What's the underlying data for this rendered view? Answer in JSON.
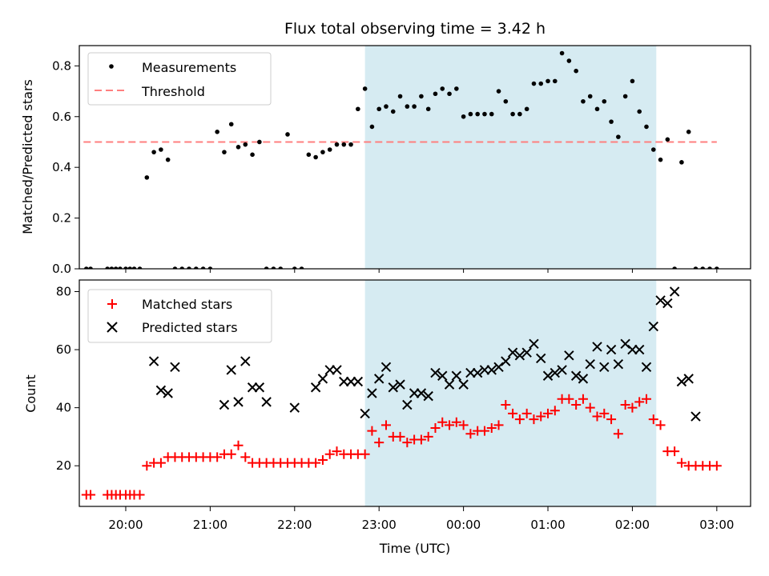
{
  "chart_data": [
    {
      "type": "scatter",
      "title": "Flux total observing time = 3.42 h",
      "ylabel": "Matched/Predicted stars",
      "ylim": [
        0,
        0.88
      ],
      "yticks": [
        0.0,
        0.2,
        0.4,
        0.6,
        0.8
      ],
      "ytick_labels": [
        "0.0",
        "0.2",
        "0.4",
        "0.6",
        "0.8"
      ],
      "x_hours_range": [
        19.45,
        27.4
      ],
      "legend_placement": "upper-left",
      "shaded_interval": {
        "start": "22:50",
        "end": "02:17",
        "color": "#add8e6"
      },
      "threshold": {
        "name": "Threshold",
        "value": 0.5,
        "x_start": "19:30",
        "x_end": "03:00",
        "color": "#ff7f7f",
        "style": "dashed"
      },
      "series": [
        {
          "name": "Measurements",
          "marker": "dot",
          "color": "#000000",
          "x": [
            "19:32",
            "19:35",
            "19:47",
            "19:50",
            "19:53",
            "19:56",
            "20:00",
            "20:03",
            "20:06",
            "20:10",
            "20:15",
            "20:20",
            "20:25",
            "20:30",
            "20:35",
            "20:40",
            "20:45",
            "20:50",
            "20:55",
            "21:00",
            "21:05",
            "21:10",
            "21:15",
            "21:20",
            "21:25",
            "21:30",
            "21:35",
            "21:40",
            "21:45",
            "21:50",
            "21:55",
            "22:00",
            "22:05",
            "22:10",
            "22:15",
            "22:20",
            "22:25",
            "22:30",
            "22:35",
            "22:40",
            "22:45",
            "22:50",
            "22:55",
            "23:00",
            "23:05",
            "23:10",
            "23:15",
            "23:20",
            "23:25",
            "23:30",
            "23:35",
            "23:40",
            "23:45",
            "23:50",
            "23:55",
            "00:00",
            "00:05",
            "00:10",
            "00:15",
            "00:20",
            "00:25",
            "00:30",
            "00:35",
            "00:40",
            "00:45",
            "00:50",
            "00:55",
            "01:00",
            "01:05",
            "01:10",
            "01:15",
            "01:20",
            "01:25",
            "01:30",
            "01:35",
            "01:40",
            "01:45",
            "01:50",
            "01:55",
            "02:00",
            "02:05",
            "02:10",
            "02:15",
            "02:20",
            "02:25",
            "02:30",
            "02:35",
            "02:40",
            "02:45",
            "02:50",
            "02:55",
            "03:00"
          ],
          "y": [
            0,
            0,
            0,
            0,
            0,
            0,
            0,
            0,
            0,
            0,
            0.36,
            0.46,
            0.47,
            0.43,
            0,
            0,
            0,
            0,
            0,
            0,
            0.54,
            0.46,
            0.57,
            0.48,
            0.49,
            0.45,
            0.5,
            0,
            0,
            0,
            0.53,
            0,
            0,
            0.45,
            0.44,
            0.46,
            0.47,
            0.49,
            0.49,
            0.49,
            0.63,
            0.71,
            0.56,
            0.63,
            0.64,
            0.62,
            0.68,
            0.64,
            0.64,
            0.68,
            0.63,
            0.69,
            0.71,
            0.69,
            0.71,
            0.6,
            0.61,
            0.61,
            0.61,
            0.61,
            0.7,
            0.66,
            0.61,
            0.61,
            0.63,
            0.73,
            0.73,
            0.74,
            0.74,
            0.85,
            0.82,
            0.78,
            0.66,
            0.68,
            0.63,
            0.66,
            0.58,
            0.52,
            0.68,
            0.74,
            0.62,
            0.56,
            0.47,
            0.43,
            0.51,
            0,
            0.42,
            0.54,
            0,
            0,
            0,
            0
          ]
        }
      ]
    },
    {
      "type": "scatter",
      "xlabel": "Time (UTC)",
      "ylabel": "Count",
      "ylim": [
        6,
        84
      ],
      "yticks": [
        20,
        40,
        60,
        80
      ],
      "ytick_labels": [
        "20",
        "40",
        "60",
        "80"
      ],
      "x_hours_range": [
        19.45,
        27.4
      ],
      "xticks_hours": [
        20,
        21,
        22,
        23,
        24,
        25,
        26,
        27
      ],
      "xtick_labels": [
        "20:00",
        "21:00",
        "22:00",
        "23:00",
        "00:00",
        "01:00",
        "02:00",
        "03:00"
      ],
      "legend_placement": "upper-left",
      "shaded_interval": {
        "start": "22:50",
        "end": "02:17",
        "color": "#add8e6"
      },
      "series": [
        {
          "name": "Matched stars",
          "marker": "plus",
          "color": "#ff0000",
          "x": [
            "19:32",
            "19:35",
            "19:47",
            "19:50",
            "19:53",
            "19:56",
            "20:00",
            "20:03",
            "20:06",
            "20:10",
            "20:15",
            "20:20",
            "20:25",
            "20:30",
            "20:35",
            "20:40",
            "20:45",
            "20:50",
            "20:55",
            "21:00",
            "21:05",
            "21:10",
            "21:15",
            "21:20",
            "21:25",
            "21:30",
            "21:35",
            "21:40",
            "21:45",
            "21:50",
            "21:55",
            "22:00",
            "22:05",
            "22:10",
            "22:15",
            "22:20",
            "22:25",
            "22:30",
            "22:35",
            "22:40",
            "22:45",
            "22:50",
            "22:55",
            "23:00",
            "23:05",
            "23:10",
            "23:15",
            "23:20",
            "23:25",
            "23:30",
            "23:35",
            "23:40",
            "23:45",
            "23:50",
            "23:55",
            "00:00",
            "00:05",
            "00:10",
            "00:15",
            "00:20",
            "00:25",
            "00:30",
            "00:35",
            "00:40",
            "00:45",
            "00:50",
            "00:55",
            "01:00",
            "01:05",
            "01:10",
            "01:15",
            "01:20",
            "01:25",
            "01:30",
            "01:35",
            "01:40",
            "01:45",
            "01:50",
            "01:55",
            "02:00",
            "02:05",
            "02:10",
            "02:15",
            "02:20",
            "02:25",
            "02:30",
            "02:35",
            "02:40",
            "02:45",
            "02:50",
            "02:55",
            "03:00"
          ],
          "y": [
            10,
            10,
            10,
            10,
            10,
            10,
            10,
            10,
            10,
            10,
            20,
            21,
            21,
            23,
            23,
            23,
            23,
            23,
            23,
            23,
            23,
            24,
            24,
            27,
            23,
            21,
            21,
            21,
            21,
            21,
            21,
            21,
            21,
            21,
            21,
            22,
            24,
            25,
            24,
            24,
            24,
            24,
            32,
            28,
            34,
            30,
            30,
            28,
            29,
            29,
            30,
            33,
            35,
            34,
            35,
            34,
            31,
            32,
            32,
            33,
            34,
            41,
            38,
            36,
            38,
            36,
            37,
            38,
            39,
            43,
            43,
            41,
            43,
            40,
            37,
            38,
            36,
            31,
            41,
            40,
            42,
            43,
            36,
            34,
            25,
            25,
            21,
            20,
            20,
            20,
            20,
            20
          ]
        },
        {
          "name": "Predicted stars",
          "marker": "x",
          "color": "#000000",
          "x": [
            "20:20",
            "20:25",
            "20:30",
            "20:35",
            "21:10",
            "21:15",
            "21:20",
            "21:25",
            "21:30",
            "21:35",
            "21:40",
            "22:00",
            "22:15",
            "22:20",
            "22:25",
            "22:30",
            "22:35",
            "22:40",
            "22:45",
            "22:50",
            "22:55",
            "23:00",
            "23:05",
            "23:10",
            "23:15",
            "23:20",
            "23:25",
            "23:30",
            "23:35",
            "23:40",
            "23:45",
            "23:50",
            "23:55",
            "00:00",
            "00:05",
            "00:10",
            "00:15",
            "00:20",
            "00:25",
            "00:30",
            "00:35",
            "00:40",
            "00:45",
            "00:50",
            "00:55",
            "01:00",
            "01:05",
            "01:10",
            "01:15",
            "01:20",
            "01:25",
            "01:30",
            "01:35",
            "01:40",
            "01:45",
            "01:50",
            "01:55",
            "02:00",
            "02:05",
            "02:10",
            "02:15",
            "02:20",
            "02:25",
            "02:30",
            "02:35",
            "02:40",
            "02:45"
          ],
          "y": [
            56,
            46,
            45,
            54,
            41,
            53,
            42,
            56,
            47,
            47,
            42,
            40,
            47,
            50,
            53,
            53,
            49,
            49,
            49,
            38,
            45,
            50,
            54,
            47,
            48,
            41,
            45,
            45,
            44,
            52,
            51,
            48,
            51,
            48,
            52,
            52,
            53,
            53,
            54,
            56,
            59,
            58,
            59,
            62,
            57,
            51,
            52,
            53,
            58,
            51,
            50,
            55,
            61,
            54,
            60,
            55,
            62,
            60,
            60,
            54,
            68,
            77,
            76,
            80,
            49,
            50,
            37
          ]
        }
      ]
    }
  ]
}
